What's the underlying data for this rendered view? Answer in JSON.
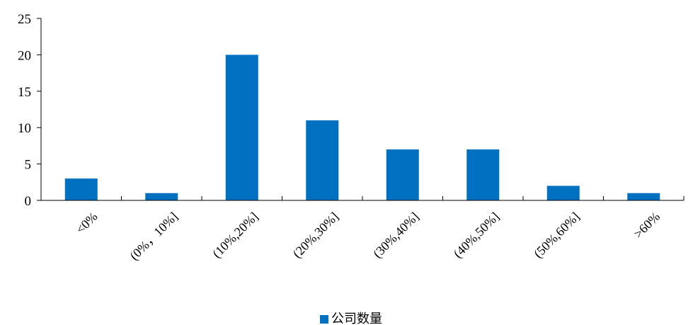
{
  "chart_data": {
    "type": "bar",
    "title": "",
    "xlabel": "",
    "ylabel": "",
    "categories": [
      "<0%",
      "(0%，10%]",
      "(10%,20%]",
      "(20%,30%]",
      "(30%,40%]",
      "(40%,50%]",
      "(50%,60%]",
      ">60%"
    ],
    "series": [
      {
        "name": "公司数量",
        "values": [
          3,
          1,
          20,
          11,
          7,
          7,
          2,
          1
        ],
        "color": "#0070C0"
      }
    ],
    "ylim": [
      0,
      25
    ],
    "yticks": [
      "0",
      "5",
      "10",
      "15",
      "20",
      "25"
    ],
    "grid": false,
    "legend": {
      "position": "bottom"
    }
  }
}
